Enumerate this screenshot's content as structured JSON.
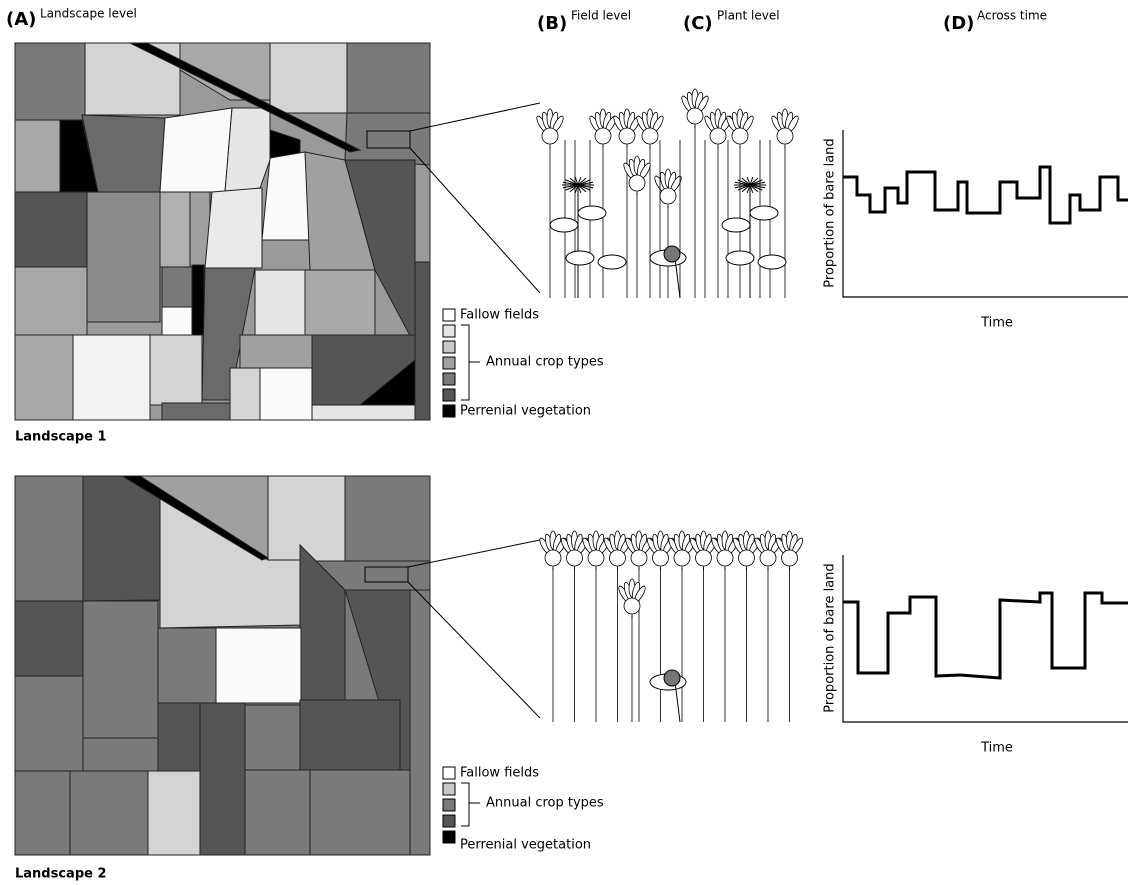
{
  "panels": [
    {
      "letter": "(A)",
      "title": "Landscape level"
    },
    {
      "letter": "(B)",
      "title": "Field level"
    },
    {
      "letter": "(C)",
      "title": "Plant level"
    },
    {
      "letter": "(D)",
      "title": "Across time"
    }
  ],
  "landscapes": [
    {
      "label": "Landscape 1",
      "legend": {
        "fallow": "Fallow fields",
        "annual": "Annual crop types",
        "perennial": "Perrenial vegetation"
      },
      "chart": {
        "y_label": "Proportion of bare land",
        "x_label": "Time"
      }
    },
    {
      "label": "Landscape 2",
      "legend": {
        "fallow": "Fallow fields",
        "annual": "Annual crop types",
        "perennial": "Perrenial vegetation"
      },
      "chart": {
        "y_label": "Proportion of bare land",
        "x_label": "Time"
      }
    }
  ]
}
